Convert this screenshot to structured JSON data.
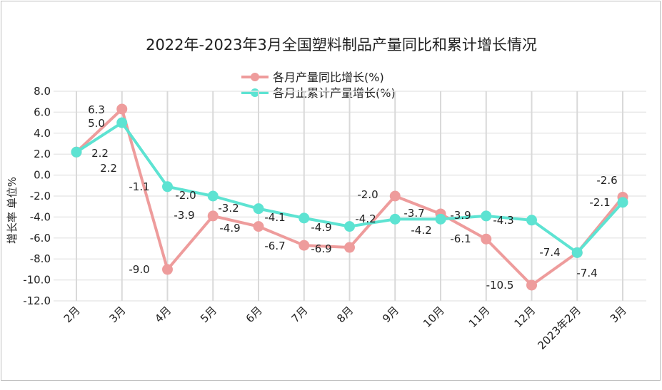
{
  "chart_data": {
    "type": "line",
    "title": "2022年-2023年3月全国塑料制品产量同比和累计增长情况",
    "ylabel": "增长率 单位%",
    "xlabel": "",
    "ylim": [
      -12,
      8
    ],
    "yticks": [
      "8.0",
      "6.0",
      "4.0",
      "2.0",
      "0.0",
      "-2.0",
      "-4.0",
      "-6.0",
      "-8.0",
      "-10.0",
      "-12.0"
    ],
    "ytick_values": [
      8,
      6,
      4,
      2,
      0,
      -2,
      -4,
      -6,
      -8,
      -10,
      -12
    ],
    "grid": true,
    "legend_position": "top-center",
    "categories": [
      "2月",
      "3月",
      "4月",
      "5月",
      "6月",
      "7月",
      "8月",
      "9月",
      "10月",
      "11月",
      "12月",
      "2023年2月",
      "3月"
    ],
    "series": [
      {
        "name": "各月产量同比增长(%)",
        "color": "#ee9c9c",
        "values": [
          2.2,
          6.3,
          -9.0,
          -3.9,
          -4.9,
          -6.7,
          -6.9,
          -2.0,
          -3.7,
          -6.1,
          -10.5,
          -7.4,
          -2.1
        ],
        "labels": [
          "2.2",
          "6.3",
          "-9.0",
          "-3.9",
          "-4.9",
          "-6.7",
          "-6.9",
          "-2.0",
          "-3.7",
          "-6.1",
          "-10.5",
          "-7.4",
          "-2.1"
        ]
      },
      {
        "name": "各月止累计产量增长(%)",
        "color": "#5de3d2",
        "values": [
          2.2,
          5.0,
          -1.1,
          -2.0,
          -3.2,
          -4.1,
          -4.9,
          -4.2,
          -4.2,
          -3.9,
          -4.3,
          -7.4,
          -2.6
        ],
        "labels": [
          "2.2",
          "5.0",
          "-1.1",
          "-2.0",
          "-3.2",
          "-4.1",
          "-4.9",
          "-4.2",
          "-4.2",
          "-3.9",
          "-4.3",
          "-7.4",
          "-2.6"
        ]
      }
    ]
  }
}
